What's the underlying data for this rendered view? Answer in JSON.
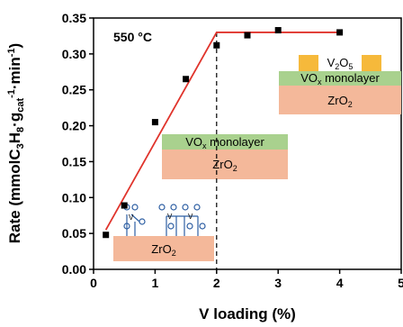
{
  "chart_data": {
    "type": "scatter",
    "temperature_label": "550 °C",
    "xlabel": "V loading (%)",
    "ylabel": "Rate (mmolC3H8·gcat-1·min-1)",
    "xlim": [
      0,
      5
    ],
    "ylim": [
      0,
      0.35
    ],
    "x_ticks": [
      "0",
      "1",
      "2",
      "3",
      "4",
      "5"
    ],
    "y_ticks": [
      "0.00",
      "0.05",
      "0.10",
      "0.15",
      "0.20",
      "0.25",
      "0.30",
      "0.35"
    ],
    "points": [
      {
        "x": 0.2,
        "y": 0.048
      },
      {
        "x": 0.5,
        "y": 0.089
      },
      {
        "x": 1.0,
        "y": 0.205
      },
      {
        "x": 1.5,
        "y": 0.265
      },
      {
        "x": 2.0,
        "y": 0.312
      },
      {
        "x": 2.5,
        "y": 0.326
      },
      {
        "x": 3.0,
        "y": 0.333
      },
      {
        "x": 4.0,
        "y": 0.33
      }
    ],
    "fit_line": [
      {
        "x": 0.2,
        "y": 0.055
      },
      {
        "x": 2.0,
        "y": 0.33
      },
      {
        "x": 4.0,
        "y": 0.33
      }
    ],
    "vline_x": 2.0,
    "insets": {
      "low": {
        "support": "ZrO2"
      },
      "mid": {
        "layer": "VOx monolayer",
        "support": "ZrO2"
      },
      "high": {
        "top": "V2O5",
        "layer": "VOx monolayer",
        "support": "ZrO2"
      }
    },
    "colors": {
      "markers": "#000000",
      "fit_line": "#e0342c",
      "support": "#f4b89a",
      "monolayer": "#a9d18e",
      "v2o5": "#f6b93b",
      "species": "#2e5fa3"
    }
  }
}
